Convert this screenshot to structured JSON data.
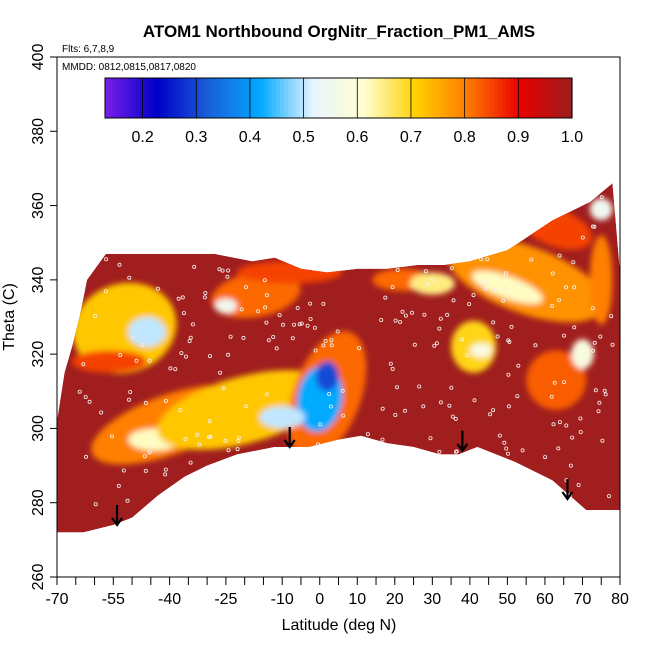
{
  "chart_data": {
    "type": "heatmap",
    "title": "ATOM1 Northbound OrgNitr_Fraction_PM1_AMS",
    "flights_label": "Flts: 6,7,8,9",
    "dates_label": "MMDD: 0812,0815,0817,0820",
    "xlabel": "Latitude (deg N)",
    "ylabel": "Theta (C)",
    "xlim": [
      -70,
      80
    ],
    "ylim": [
      260,
      400
    ],
    "x_tick_labels": [
      "-70",
      "-55",
      "-40",
      "-25",
      "-10",
      "0",
      "10",
      "20",
      "30",
      "40",
      "50",
      "60",
      "70",
      "80"
    ],
    "x_tick_values": [
      -70,
      -55,
      -40,
      -25,
      -10,
      0,
      10,
      20,
      30,
      40,
      50,
      60,
      70,
      80
    ],
    "x_minor_ticks": [
      -65,
      -60,
      -50,
      -45,
      -35,
      -30,
      -20,
      -15,
      -5,
      5,
      15,
      25,
      35,
      45,
      55,
      65,
      75
    ],
    "y_tick_labels": [
      "260",
      "280",
      "300",
      "320",
      "340",
      "360",
      "380",
      "400"
    ],
    "y_tick_values": [
      260,
      280,
      300,
      320,
      340,
      360,
      380,
      400
    ],
    "colorbar": {
      "range": [
        0.13,
        1.0
      ],
      "tick_values": [
        0.2,
        0.3,
        0.4,
        0.5,
        0.6,
        0.7,
        0.8,
        0.9,
        1.0
      ],
      "tick_labels": [
        "0.2",
        "0.3",
        "0.4",
        "0.5",
        "0.6",
        "0.7",
        "0.8",
        "0.9",
        "1.0"
      ],
      "colors": [
        "#7a1fe8",
        "#0000c8",
        "#1a5fd9",
        "#00aaff",
        "#e8f4ff",
        "#ffffd0",
        "#ffd000",
        "#ff7a00",
        "#e80000",
        "#9b1e1e"
      ]
    },
    "background_color": "#a01e1e",
    "field_outline": [
      [
        -70,
        272
      ],
      [
        -63,
        272
      ],
      [
        -55,
        274
      ],
      [
        -50,
        276
      ],
      [
        -43,
        282
      ],
      [
        -36,
        287
      ],
      [
        -30,
        290
      ],
      [
        -22,
        293
      ],
      [
        -12,
        295
      ],
      [
        -3,
        295
      ],
      [
        5,
        297
      ],
      [
        11,
        298
      ],
      [
        18,
        296
      ],
      [
        25,
        295
      ],
      [
        32,
        293
      ],
      [
        37,
        293
      ],
      [
        42,
        295
      ],
      [
        52,
        291
      ],
      [
        62,
        286
      ],
      [
        71,
        278
      ],
      [
        80,
        278
      ],
      [
        80,
        342
      ],
      [
        78,
        366
      ],
      [
        72,
        361
      ],
      [
        62,
        356
      ],
      [
        50,
        348
      ],
      [
        40,
        345
      ],
      [
        33,
        344
      ],
      [
        26,
        344
      ],
      [
        18,
        343
      ],
      [
        10,
        343
      ],
      [
        2,
        342
      ],
      [
        -5,
        343
      ],
      [
        -12,
        346
      ],
      [
        -18,
        345
      ],
      [
        -28,
        347
      ],
      [
        -36,
        347
      ],
      [
        -47,
        347
      ],
      [
        -57,
        347
      ],
      [
        -62,
        340
      ],
      [
        -64,
        330
      ],
      [
        -66,
        322
      ],
      [
        -68,
        315
      ],
      [
        -70,
        302
      ]
    ],
    "features": [
      {
        "lat": -52,
        "theta": 327,
        "rx": 14,
        "rt": 12,
        "value": 0.72,
        "angle": -18
      },
      {
        "lat": -46,
        "theta": 326,
        "rx": 5,
        "rt": 4,
        "value": 0.5,
        "angle": 0
      },
      {
        "lat": -40,
        "theta": 301,
        "rx": 22,
        "rt": 8,
        "value": 0.8,
        "angle": -20
      },
      {
        "lat": -44,
        "theta": 297,
        "rx": 7,
        "rt": 3,
        "value": 0.62,
        "angle": 0
      },
      {
        "lat": -56,
        "theta": 318,
        "rx": 10,
        "rt": 3,
        "value": 0.85,
        "angle": 0
      },
      {
        "lat": -20,
        "theta": 305,
        "rx": 24,
        "rt": 9,
        "value": 0.72,
        "angle": -15
      },
      {
        "lat": 2,
        "theta": 309,
        "rx": 9,
        "rt": 18,
        "value": 0.82,
        "angle": 20
      },
      {
        "lat": 0,
        "theta": 308,
        "rx": 6,
        "rt": 9,
        "value": 0.42,
        "angle": 10
      },
      {
        "lat": 2,
        "theta": 314,
        "rx": 3,
        "rt": 4,
        "value": 0.3,
        "angle": 0
      },
      {
        "lat": -10,
        "theta": 303,
        "rx": 6,
        "rt": 3,
        "value": 0.5,
        "angle": 0
      },
      {
        "lat": -17,
        "theta": 336,
        "rx": 12,
        "rt": 6,
        "value": 0.82,
        "angle": -10
      },
      {
        "lat": -25,
        "theta": 333,
        "rx": 3,
        "rt": 2,
        "value": 0.55,
        "angle": 0
      },
      {
        "lat": -8,
        "theta": 342,
        "rx": 14,
        "rt": 3,
        "value": 0.85,
        "angle": 0
      },
      {
        "lat": 41,
        "theta": 322,
        "rx": 6,
        "rt": 7,
        "value": 0.7,
        "angle": 0
      },
      {
        "lat": 43,
        "theta": 321,
        "rx": 3,
        "rt": 2,
        "value": 0.58,
        "angle": 0
      },
      {
        "lat": 55,
        "theta": 340,
        "rx": 22,
        "rt": 9,
        "value": 0.78,
        "angle": 20
      },
      {
        "lat": 50,
        "theta": 338,
        "rx": 10,
        "rt": 3,
        "value": 0.62,
        "angle": 20
      },
      {
        "lat": 63,
        "theta": 313,
        "rx": 8,
        "rt": 8,
        "value": 0.83,
        "angle": -30
      },
      {
        "lat": 70,
        "theta": 320,
        "rx": 3,
        "rt": 4,
        "value": 0.58,
        "angle": 0
      },
      {
        "lat": 63,
        "theta": 354,
        "rx": 10,
        "rt": 5,
        "value": 0.85,
        "angle": 20
      },
      {
        "lat": 75,
        "theta": 359,
        "rx": 3,
        "rt": 3,
        "value": 0.55,
        "angle": 0
      },
      {
        "lat": 75,
        "theta": 340,
        "rx": 3,
        "rt": 12,
        "value": 0.8,
        "angle": 0
      },
      {
        "lat": 22,
        "theta": 340,
        "rx": 8,
        "rt": 3,
        "value": 0.82,
        "angle": 0
      },
      {
        "lat": 30,
        "theta": 339,
        "rx": 6,
        "rt": 3,
        "value": 0.65,
        "angle": 0
      }
    ],
    "arrows": [
      {
        "lat": -54,
        "theta": 274
      },
      {
        "lat": -8,
        "theta": 295
      },
      {
        "lat": 38,
        "theta": 294
      },
      {
        "lat": 66,
        "theta": 281
      }
    ]
  }
}
